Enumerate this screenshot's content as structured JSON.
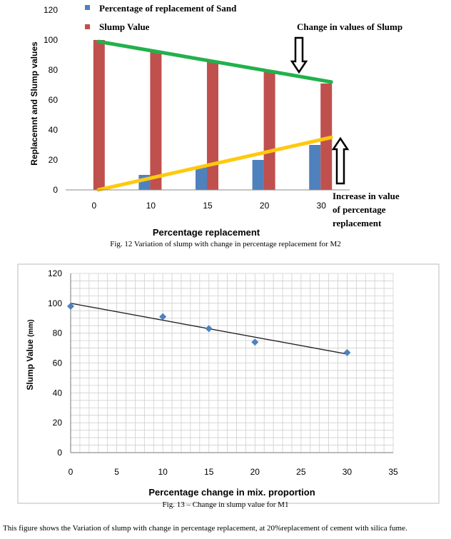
{
  "chart_data": [
    {
      "type": "bar",
      "categories": [
        "0",
        "10",
        "15",
        "20",
        "30"
      ],
      "series": [
        {
          "name": "Percentage of replacement of Sand",
          "values": [
            0,
            10,
            15,
            20,
            30
          ],
          "color": "#4f81bd"
        },
        {
          "name": "Slump Value",
          "values": [
            100,
            92,
            86,
            79,
            71
          ],
          "color": "#c0504d"
        }
      ],
      "trendlines": [
        {
          "label": "Change in values of Slump",
          "from": [
            0,
            99
          ],
          "to": [
            30,
            72
          ],
          "color": "#22b14c"
        },
        {
          "label": "Increase in value of percentage replacement",
          "from": [
            0,
            0
          ],
          "to": [
            30,
            35
          ],
          "color": "#ffc90e"
        }
      ],
      "annotations": {
        "slump_change": "Change in values of Slump",
        "increase_line1": "Increase in value",
        "increase_line2": "of percentage",
        "increase_line3": "replacement"
      },
      "legend": {
        "position": "top",
        "items": [
          "Percentage of replacement of Sand",
          "Slump Value"
        ]
      },
      "xlabel": "Percentage replacement",
      "ylabel": "Replacemnt and Slump values",
      "ylim": [
        0,
        120
      ],
      "yticks": [
        0,
        20,
        40,
        60,
        80,
        100,
        120
      ],
      "grid": false,
      "caption": "Fig. 12 Variation of slump with change in percentage replacement for M2"
    },
    {
      "type": "scatter",
      "points": [
        [
          0,
          98
        ],
        [
          10,
          91
        ],
        [
          15,
          83
        ],
        [
          20,
          74
        ],
        [
          30,
          67
        ]
      ],
      "trendline": {
        "from": [
          0,
          100
        ],
        "to": [
          30,
          66
        ]
      },
      "marker_color": "#4f81bd",
      "xlabel": "Percentage change  in mix. proportion",
      "ylabel": "Slump Value",
      "ylabel_unit": "(mm)",
      "xlim": [
        0,
        35
      ],
      "ylim": [
        0,
        120
      ],
      "xticks": [
        0,
        5,
        10,
        15,
        20,
        25,
        30,
        35
      ],
      "yticks": [
        0,
        20,
        40,
        60,
        80,
        100,
        120
      ],
      "grid": true,
      "caption": "Fig. 13 – Change in slump value for M1"
    }
  ],
  "footer_text": "This figure shows the Variation of slump with change in percentage replacement, at 20%replacement of cement with silica fume."
}
